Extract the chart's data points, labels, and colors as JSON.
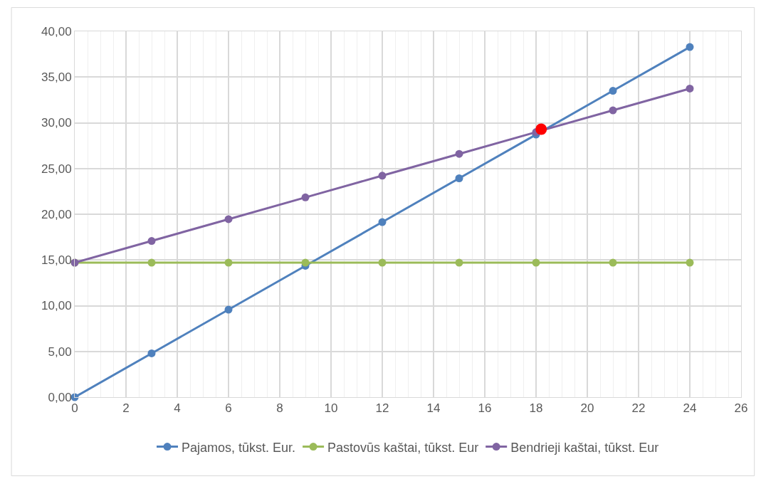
{
  "chart_data": {
    "type": "line",
    "marker": "circle",
    "line_style": "solid",
    "grid": true,
    "legend": "bottom",
    "x": [
      0,
      3,
      6,
      9,
      12,
      15,
      18,
      21,
      24
    ],
    "series": [
      {
        "name": "Pajamos, tūkst. Eur.",
        "color": "#4f81bd",
        "values": [
          0,
          4.79,
          9.57,
          14.36,
          19.14,
          23.93,
          28.71,
          33.5,
          38.28
        ]
      },
      {
        "name": "Pastovūs kaštai, tūkst. Eur",
        "color": "#9bbb59",
        "values": [
          14.7,
          14.7,
          14.7,
          14.7,
          14.7,
          14.7,
          14.7,
          14.7,
          14.7
        ]
      },
      {
        "name": "Bendrieji kaštai, tūkst. Eur",
        "color": "#8064a2",
        "values": [
          14.7,
          17.08,
          19.46,
          21.84,
          24.22,
          26.6,
          28.98,
          31.36,
          33.74
        ]
      },
      {
        "type": "scatter",
        "color": "#ff0000",
        "x": [
          18.2
        ],
        "values": [
          29.3
        ]
      }
    ],
    "xlim": [
      0,
      26
    ],
    "xticks": [
      0,
      2,
      4,
      6,
      8,
      10,
      12,
      14,
      16,
      18,
      20,
      22,
      24,
      26
    ],
    "ylim": [
      0,
      40
    ],
    "yticks": [
      {
        "value": 0,
        "label": "0,00"
      },
      {
        "value": 5,
        "label": "5,00"
      },
      {
        "value": 10,
        "label": "10,00"
      },
      {
        "value": 15,
        "label": "15,00"
      },
      {
        "value": 20,
        "label": "20,00"
      },
      {
        "value": 25,
        "label": "25,00"
      },
      {
        "value": 30,
        "label": "30,00"
      },
      {
        "value": 35,
        "label": "35,00"
      },
      {
        "value": 40,
        "label": "40,00"
      }
    ]
  }
}
